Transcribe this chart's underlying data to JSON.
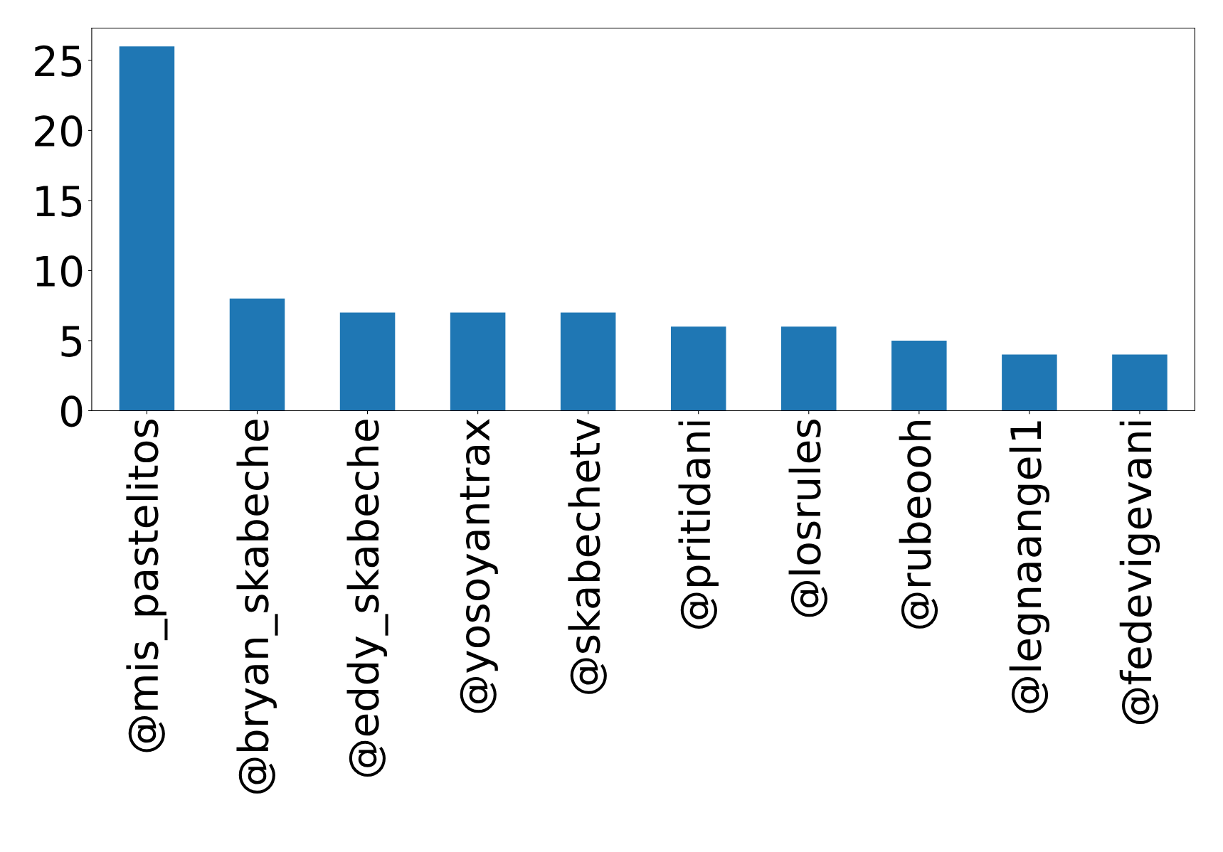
{
  "chart_data": {
    "type": "bar",
    "categories": [
      "@mis_pastelitos",
      "@bryan_skabeche",
      "@eddy_skabeche",
      "@yosoyantrax",
      "@skabechetv",
      "@pritidani",
      "@losrules",
      "@rubeooh",
      "@legnaangel1",
      "@fedevigevani"
    ],
    "values": [
      26,
      8,
      7,
      7,
      7,
      6,
      6,
      5,
      4,
      4
    ],
    "color": "#1f77b4",
    "ylim": [
      0,
      27.3
    ],
    "yticks": [
      0,
      5,
      10,
      15,
      20,
      25
    ],
    "grid": false,
    "legend": false
  }
}
